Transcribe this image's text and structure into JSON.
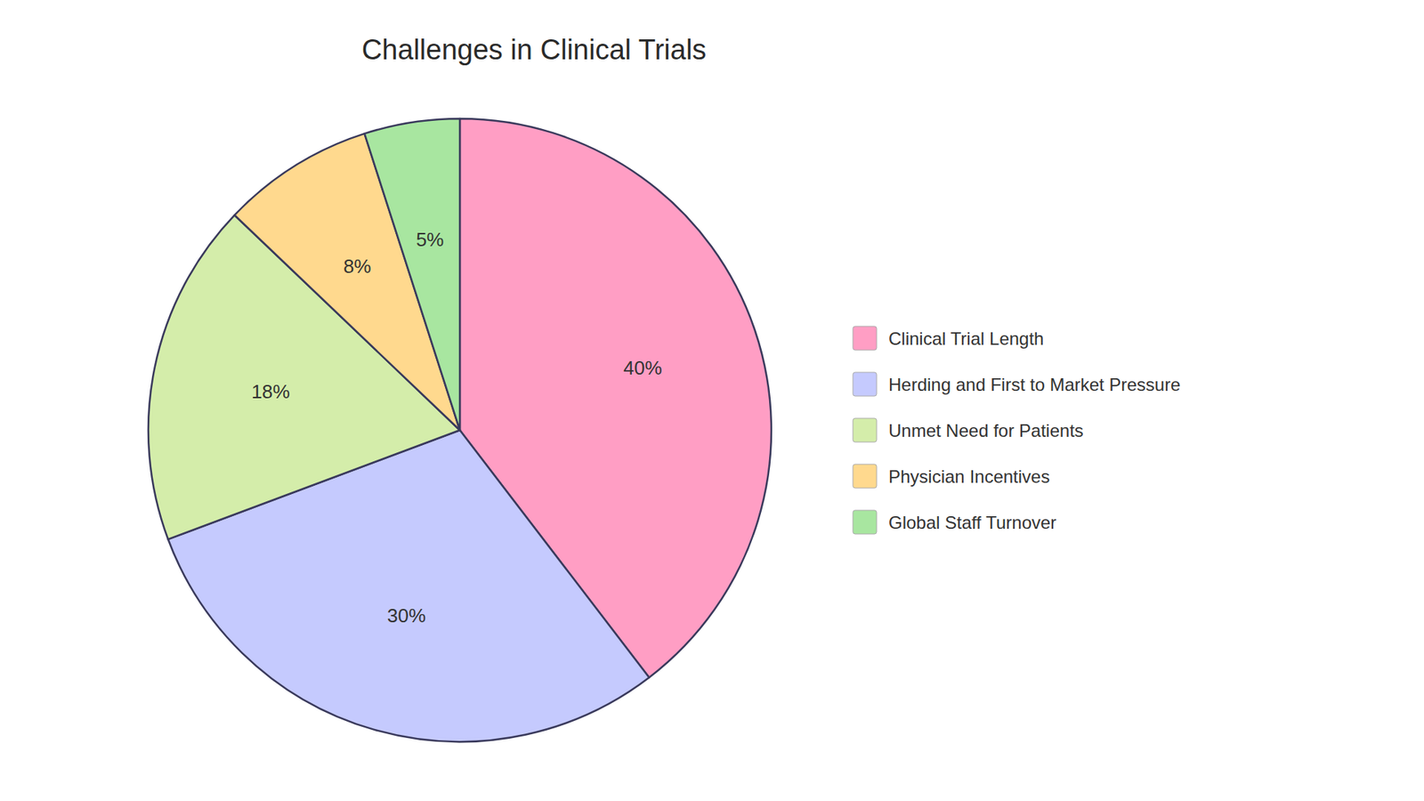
{
  "chart_data": {
    "type": "pie",
    "title": "Challenges in Clinical Trials",
    "categories": [
      "Clinical Trial Length",
      "Herding and First to Market Pressure",
      "Unmet Need for Patients",
      "Physician Incentives",
      "Global Staff Turnover"
    ],
    "values": [
      40,
      30,
      18,
      8,
      5
    ],
    "value_labels": [
      "40%",
      "30%",
      "18%",
      "8%",
      "5%"
    ],
    "colors": [
      "#FF9EC4",
      "#C5CAFE",
      "#D4EDAA",
      "#FFD98E",
      "#A8E6A0"
    ],
    "data_labels": true,
    "legend": "right"
  }
}
